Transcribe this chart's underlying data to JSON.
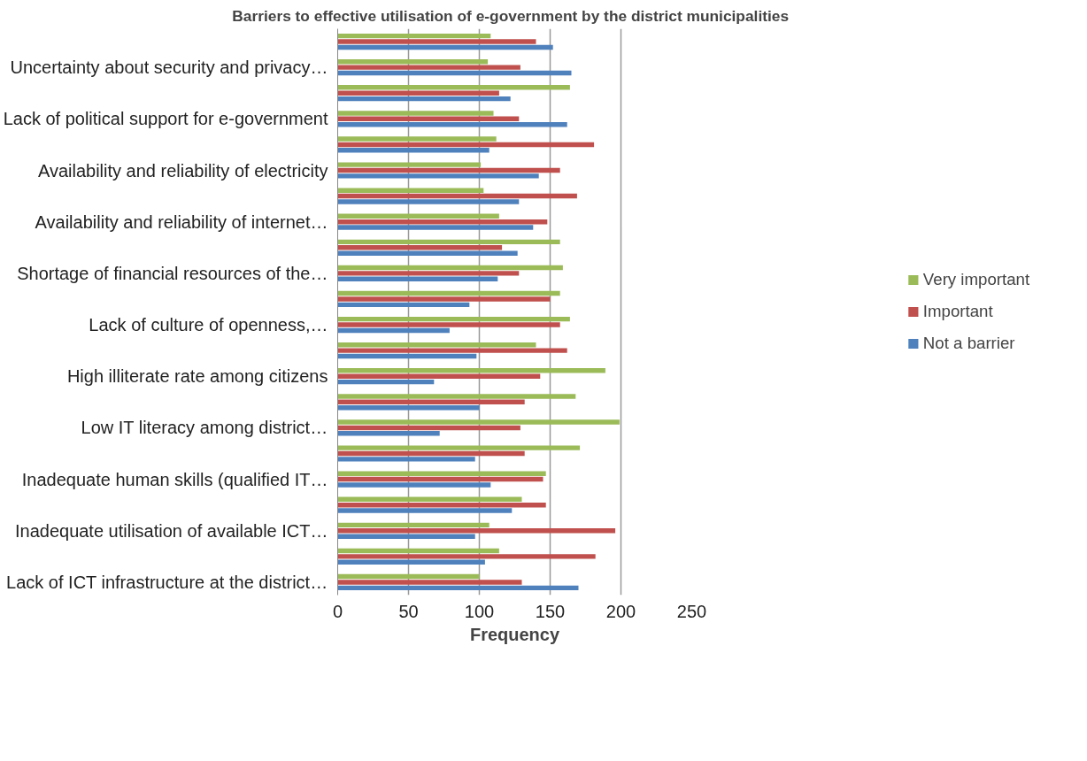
{
  "chart_data": {
    "type": "bar",
    "orientation": "horizontal",
    "title": "Barriers to effective utilisation of  e-government by the  district municipalities",
    "xlabel": "Frequency",
    "categories": [
      null,
      "Uncertainty about security and privacy…",
      null,
      "Lack of political support for e-government",
      null,
      "Availability and reliability of electricity",
      null,
      "Availability and reliability of internet…",
      null,
      "Shortage of financial resources of the…",
      null,
      "Lack of culture of openness,…",
      null,
      "High illiterate rate among citizens",
      null,
      "Low IT literacy among district…",
      null,
      "Inadequate human skills (qualified IT…",
      null,
      "Inadequate utilisation of available ICT…",
      null,
      "Lack of ICT infrastructure at the district…"
    ],
    "series": [
      {
        "name": "Very important",
        "color": "#9bbb59",
        "values": [
          108,
          106,
          164,
          110,
          112,
          101,
          103,
          114,
          157,
          159,
          157,
          164,
          140,
          189,
          168,
          199,
          171,
          147,
          130,
          107,
          114,
          100
        ]
      },
      {
        "name": "Important",
        "color": "#c0504d",
        "values": [
          140,
          129,
          114,
          128,
          181,
          157,
          169,
          148,
          116,
          128,
          150,
          157,
          162,
          143,
          132,
          129,
          132,
          145,
          147,
          196,
          182,
          130
        ]
      },
      {
        "name": "Not a barrier",
        "color": "#4f81bd",
        "values": [
          152,
          165,
          122,
          162,
          107,
          142,
          128,
          138,
          127,
          113,
          93,
          79,
          98,
          68,
          100,
          72,
          97,
          108,
          123,
          97,
          104,
          170
        ]
      }
    ],
    "xlim": [
      0,
      250
    ],
    "xticks": [
      0,
      50,
      100,
      150,
      200,
      250
    ],
    "grid": "x",
    "legend": "right"
  }
}
